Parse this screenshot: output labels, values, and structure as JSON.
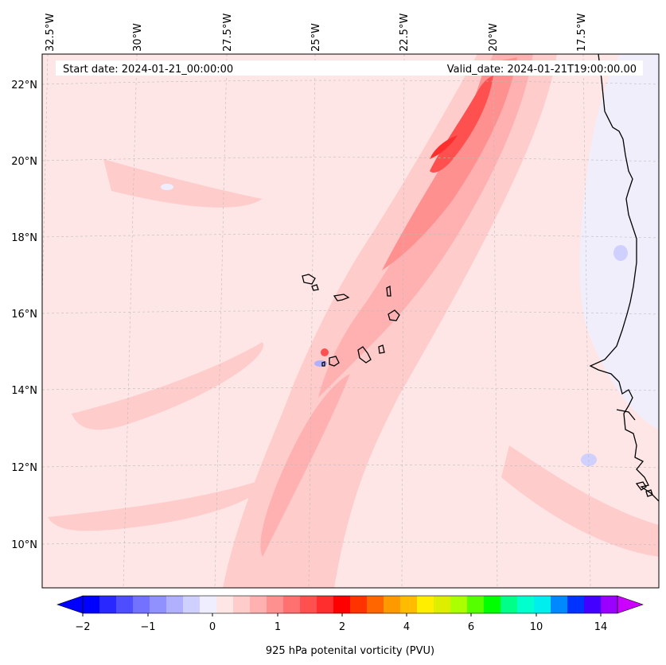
{
  "map": {
    "start_label": "Start date: 2024-01-21_00:00:00",
    "valid_label": "Valid_date: 2024-01-21T19:00:00.00",
    "lon_labels": [
      "32.5°W",
      "30°W",
      "27.5°W",
      "25°W",
      "22.5°W",
      "20°W",
      "17.5°W"
    ],
    "lat_labels": [
      "22°N",
      "20°N",
      "18°N",
      "16°N",
      "14°N",
      "12°N",
      "10°N"
    ],
    "background_color": "#ffe6e6",
    "accent_color": "#ff2e2e",
    "coast_color": "#000000"
  },
  "colorbar": {
    "label": "925 hPa potenital vorticity (PVU)",
    "tick_labels": [
      "−2",
      "−1",
      "0",
      "1",
      "2",
      "4",
      "6",
      "10",
      "14"
    ],
    "colors": [
      "#0000ff",
      "#2828ff",
      "#4e4eff",
      "#7272ff",
      "#9090ff",
      "#b0b0ff",
      "#d0d0ff",
      "#eeeeff",
      "#ffe6e6",
      "#ffcccc",
      "#ffb0b0",
      "#ff9090",
      "#ff7070",
      "#ff5050",
      "#ff2e2e",
      "#ff0000",
      "#ff3300",
      "#ff6600",
      "#ff9900",
      "#ffbb00",
      "#ffee00",
      "#ddee00",
      "#aaff00",
      "#55ff00",
      "#00ff00",
      "#00ff88",
      "#00ffcc",
      "#00eeee",
      "#0088ff",
      "#0033ff",
      "#4400ff",
      "#9900ff"
    ],
    "under_color": "#0000ff",
    "over_color": "#cc00ff"
  }
}
